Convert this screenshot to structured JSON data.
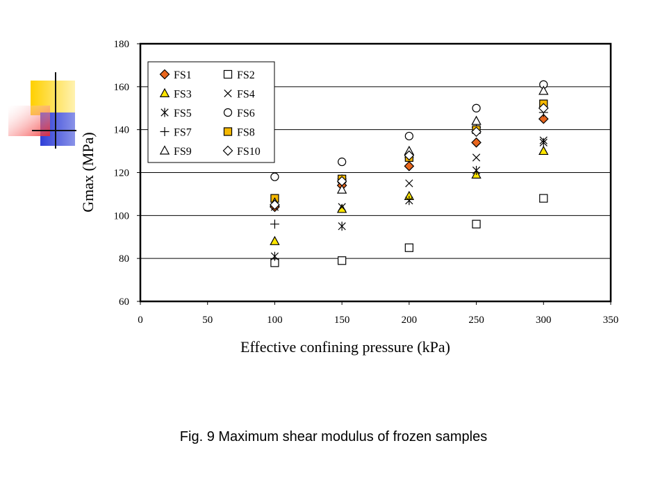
{
  "caption": "Fig. 9 Maximum shear modulus of frozen samples",
  "chart_data": {
    "type": "scatter",
    "xlabel": "Effective confining pressure (kPa)",
    "ylabel": "Gmax (MPa)",
    "xlim": [
      0,
      350
    ],
    "ylim": [
      60,
      180
    ],
    "xticks": [
      "0",
      "50",
      "100",
      "150",
      "200",
      "250",
      "300",
      "350"
    ],
    "yticks": [
      "60",
      "80",
      "100",
      "120",
      "140",
      "160",
      "180"
    ],
    "grid": "horizontal",
    "legend_position": "top-left",
    "legend_columns": 2,
    "series": [
      {
        "name": "FS1",
        "marker": "diamond",
        "fill": "#E8661E",
        "x": [
          100,
          150,
          200,
          250,
          300
        ],
        "y": [
          104,
          114,
          123,
          134,
          145
        ]
      },
      {
        "name": "FS2",
        "marker": "square",
        "fill": "#FFFFFF",
        "x": [
          100,
          150,
          200,
          250,
          300
        ],
        "y": [
          78,
          79,
          85,
          96,
          108
        ]
      },
      {
        "name": "FS3",
        "marker": "triangle",
        "fill": "#FFE600",
        "x": [
          100,
          150,
          200,
          250,
          300
        ],
        "y": [
          88,
          103,
          109,
          119,
          130
        ]
      },
      {
        "name": "FS4",
        "marker": "x",
        "fill": "none",
        "x": [
          100,
          150,
          200,
          250,
          300
        ],
        "y": [
          104,
          104,
          115,
          127,
          135
        ]
      },
      {
        "name": "FS5",
        "marker": "asterisk",
        "fill": "none",
        "x": [
          100,
          150,
          200,
          250,
          300
        ],
        "y": [
          81,
          95,
          107,
          121,
          134
        ]
      },
      {
        "name": "FS6",
        "marker": "circle",
        "fill": "#FFFFFF",
        "x": [
          100,
          150,
          200,
          250,
          300
        ],
        "y": [
          118,
          125,
          137,
          150,
          161
        ]
      },
      {
        "name": "FS7",
        "marker": "plus",
        "fill": "none",
        "x": [
          100,
          150,
          200,
          250,
          300
        ],
        "y": [
          96,
          117,
          127,
          141,
          148
        ]
      },
      {
        "name": "FS8",
        "marker": "square",
        "fill": "#F5B800",
        "x": [
          100,
          150,
          200,
          250,
          300
        ],
        "y": [
          108,
          117,
          127,
          140,
          152
        ]
      },
      {
        "name": "FS9",
        "marker": "triangle",
        "fill": "#FFFFFF",
        "x": [
          100,
          150,
          200,
          250,
          300
        ],
        "y": [
          106,
          112,
          130,
          144,
          158
        ]
      },
      {
        "name": "FS10",
        "marker": "diamond",
        "fill": "#FFFFFF",
        "x": [
          100,
          150,
          200,
          250,
          300
        ],
        "y": [
          105,
          116,
          128,
          139,
          150
        ]
      }
    ]
  },
  "decoration": {
    "colors": {
      "yellow": "#FFD000",
      "blue": "#2F3FD8",
      "red": "#F22424",
      "line": "#111111"
    }
  }
}
